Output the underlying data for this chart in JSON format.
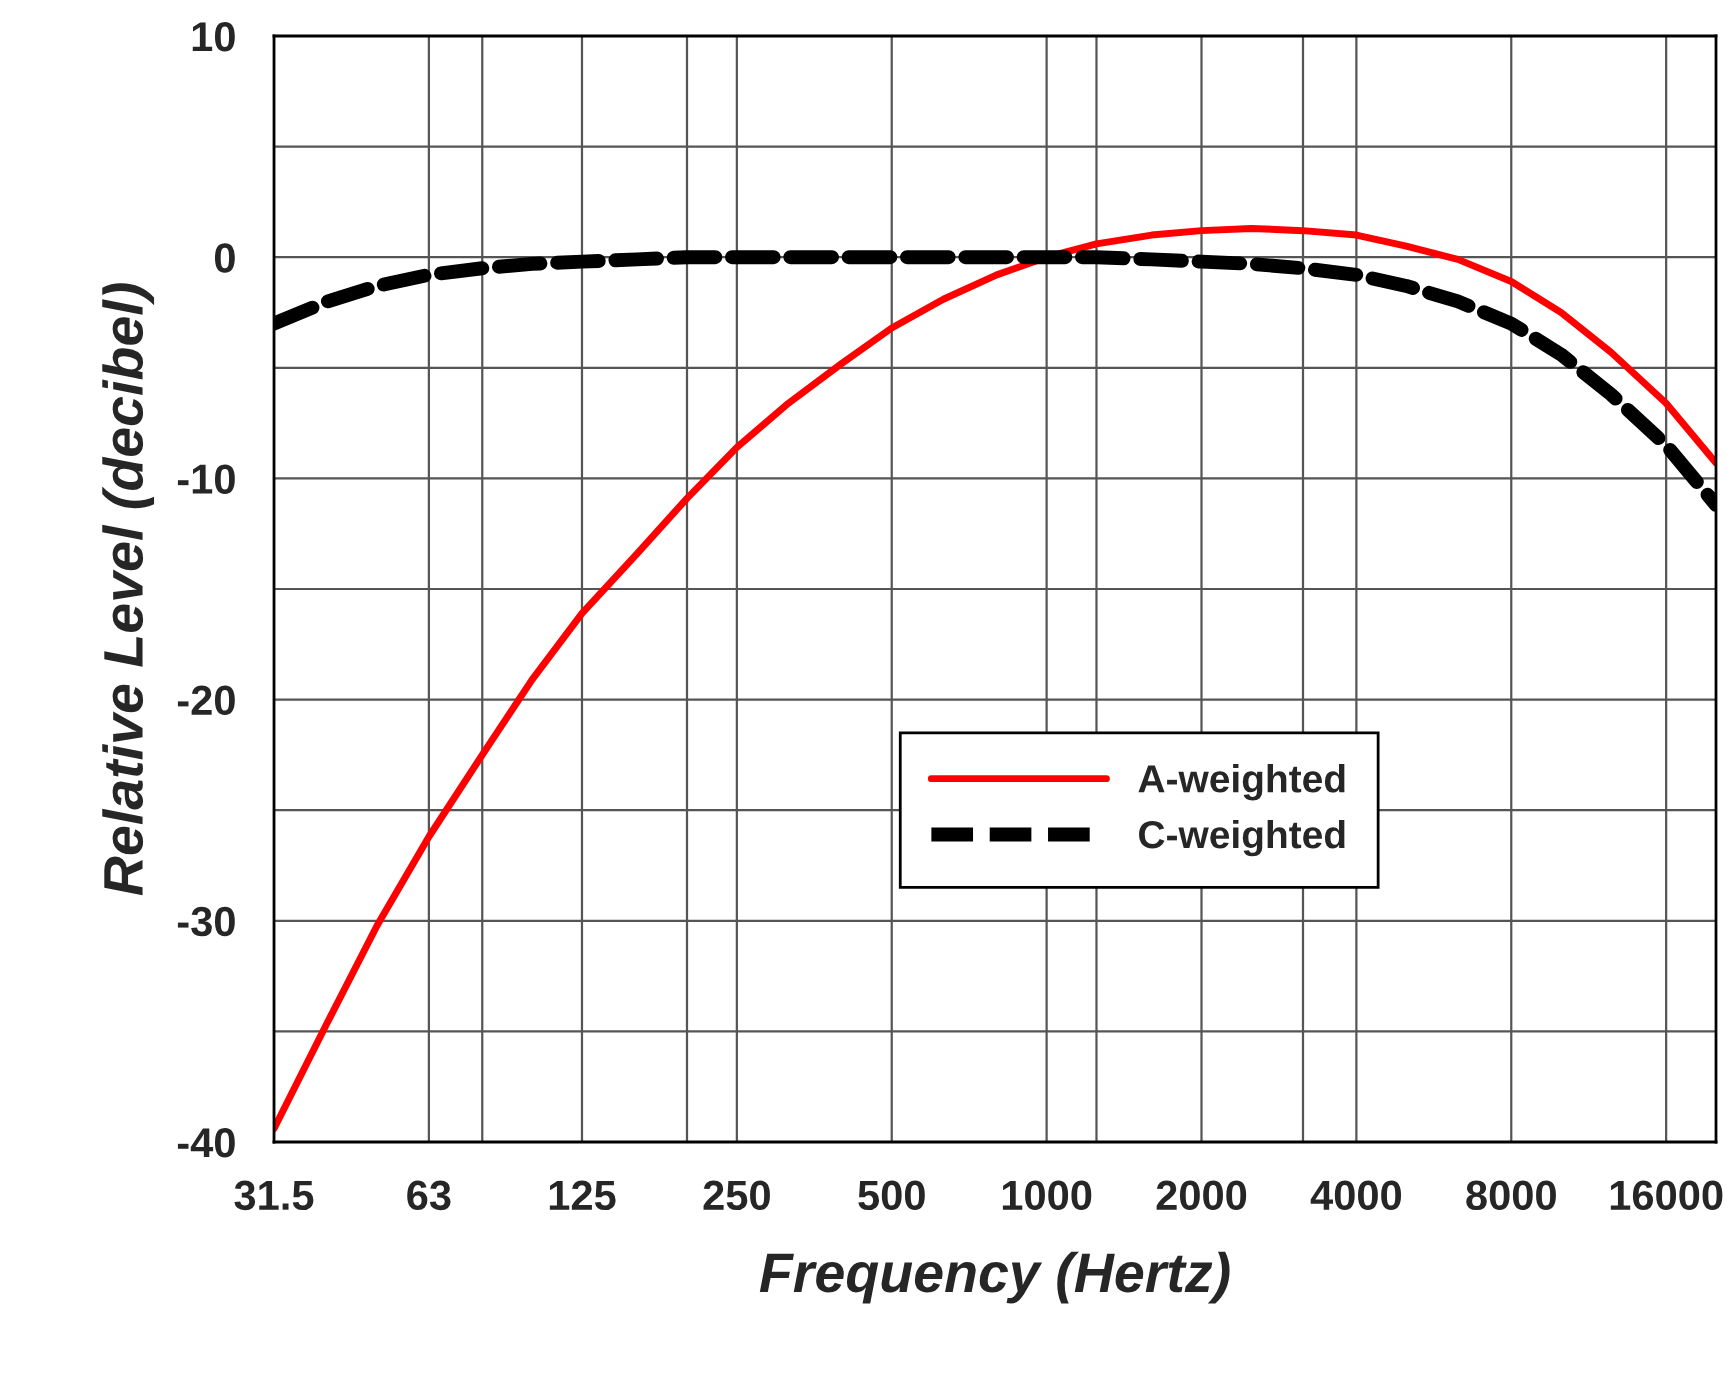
{
  "chart_data": {
    "type": "line",
    "xlabel": "Frequency (Hertz)",
    "ylabel": "Relative Level (decibel)",
    "x": [
      31.5,
      40,
      50,
      63,
      80,
      100,
      125,
      160,
      200,
      250,
      315,
      400,
      500,
      630,
      800,
      1000,
      1250,
      1600,
      2000,
      2500,
      3150,
      4000,
      5000,
      6300,
      8000,
      10000,
      12500,
      16000,
      20000
    ],
    "series": [
      {
        "name": "A-weighted",
        "color": "#ff0000",
        "line_style": "solid",
        "values": [
          -39.4,
          -34.6,
          -30.2,
          -26.2,
          -22.5,
          -19.1,
          -16.1,
          -13.4,
          -10.9,
          -8.6,
          -6.6,
          -4.8,
          -3.2,
          -1.9,
          -0.8,
          0,
          0.6,
          1.0,
          1.2,
          1.3,
          1.2,
          1.0,
          0.5,
          -0.1,
          -1.1,
          -2.5,
          -4.3,
          -6.6,
          -9.3
        ]
      },
      {
        "name": "C-weighted",
        "color": "#000000",
        "line_style": "dashed",
        "values": [
          -3.0,
          -2.0,
          -1.3,
          -0.8,
          -0.5,
          -0.3,
          -0.2,
          -0.1,
          0,
          0,
          0,
          0,
          0,
          0,
          0,
          0,
          0,
          -0.1,
          -0.2,
          -0.3,
          -0.5,
          -0.8,
          -1.3,
          -2.0,
          -3.0,
          -4.4,
          -6.2,
          -8.5,
          -11.2
        ]
      }
    ],
    "log": "x",
    "xlim": [
      31.5,
      20000
    ],
    "xticks": [
      {
        "value": 31.5,
        "label": "31.5"
      },
      63,
      {
        "value": 80,
        "label": null
      },
      125,
      {
        "value": 200,
        "label": null
      },
      250,
      500,
      1000,
      {
        "value": 1250,
        "label": null
      },
      2000,
      {
        "value": 3150,
        "label": null
      },
      4000,
      8000,
      16000
    ],
    "ylim": [
      -40,
      10
    ],
    "yticks": [
      -40,
      {
        "value": -35,
        "label": null
      },
      -30,
      {
        "value": -25,
        "label": null
      },
      -20,
      {
        "value": -15,
        "label": null
      },
      -10,
      {
        "value": -5,
        "label": null
      },
      0,
      {
        "value": 5,
        "label": null
      },
      10
    ],
    "grid": true,
    "legend": "center"
  }
}
